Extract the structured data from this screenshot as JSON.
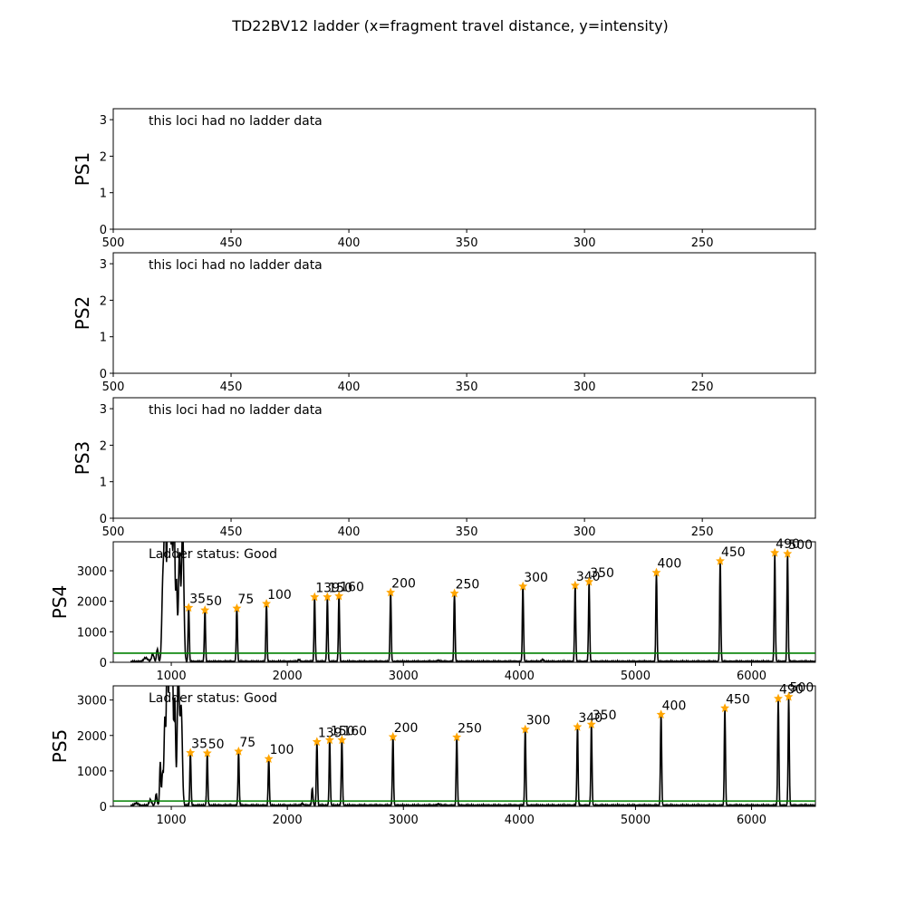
{
  "figure_title": "TD22BV12 ladder (x=fragment travel distance, y=intensity)",
  "chart_data": [
    {
      "type": "line",
      "ylabel": "PS1",
      "annotation": "this loci had no ladder data",
      "xlim": [
        500,
        202
      ],
      "x_ticks": [
        500,
        450,
        400,
        350,
        300,
        250
      ],
      "ylim": [
        0,
        3.3
      ],
      "y_ticks": [
        0,
        1,
        2,
        3
      ],
      "peaks": []
    },
    {
      "type": "line",
      "ylabel": "PS2",
      "annotation": "this loci had no ladder data",
      "xlim": [
        500,
        202
      ],
      "x_ticks": [
        500,
        450,
        400,
        350,
        300,
        250
      ],
      "ylim": [
        0,
        3.3
      ],
      "y_ticks": [
        0,
        1,
        2,
        3
      ],
      "peaks": []
    },
    {
      "type": "line",
      "ylabel": "PS3",
      "annotation": "this loci had no ladder data",
      "xlim": [
        500,
        202
      ],
      "x_ticks": [
        500,
        450,
        400,
        350,
        300,
        250
      ],
      "ylim": [
        0,
        3.3
      ],
      "y_ticks": [
        0,
        1,
        2,
        3
      ],
      "peaks": []
    },
    {
      "type": "line",
      "ylabel": "PS4",
      "annotation": "Ladder status: Good",
      "xlim": [
        500,
        6550
      ],
      "x_ticks": [
        1000,
        2000,
        3000,
        4000,
        5000,
        6000
      ],
      "ylim": [
        0,
        3950
      ],
      "y_ticks": [
        0,
        1000,
        2000,
        3000
      ],
      "threshold": 300,
      "colors": {
        "line": "#000000",
        "threshold": "#008000",
        "marker": "#ffa500"
      },
      "peaks": [
        {
          "x": 1150,
          "y": 1800,
          "label": "35"
        },
        {
          "x": 1290,
          "y": 1720,
          "label": "50"
        },
        {
          "x": 1565,
          "y": 1780,
          "label": "75"
        },
        {
          "x": 1820,
          "y": 1930,
          "label": "100"
        },
        {
          "x": 2235,
          "y": 2150,
          "label": "139"
        },
        {
          "x": 2345,
          "y": 2150,
          "label": "150"
        },
        {
          "x": 2445,
          "y": 2180,
          "label": "160"
        },
        {
          "x": 2890,
          "y": 2300,
          "label": "200"
        },
        {
          "x": 3440,
          "y": 2270,
          "label": "250"
        },
        {
          "x": 4030,
          "y": 2500,
          "label": "300"
        },
        {
          "x": 4480,
          "y": 2530,
          "label": "340"
        },
        {
          "x": 4600,
          "y": 2650,
          "label": "350"
        },
        {
          "x": 5180,
          "y": 2950,
          "label": "400"
        },
        {
          "x": 5730,
          "y": 3330,
          "label": "450"
        },
        {
          "x": 6200,
          "y": 3600,
          "label": "490"
        },
        {
          "x": 6310,
          "y": 3570,
          "label": "500"
        }
      ]
    },
    {
      "type": "line",
      "ylabel": "PS5",
      "annotation": "Ladder status: Good",
      "xlim": [
        500,
        6550
      ],
      "x_ticks": [
        1000,
        2000,
        3000,
        4000,
        5000,
        6000
      ],
      "ylim": [
        0,
        3400
      ],
      "y_ticks": [
        0,
        1000,
        2000,
        3000
      ],
      "threshold": 150,
      "colors": {
        "line": "#000000",
        "threshold": "#008000",
        "marker": "#ffa500"
      },
      "peaks": [
        {
          "x": 1165,
          "y": 1520,
          "label": "35"
        },
        {
          "x": 1310,
          "y": 1510,
          "label": "50"
        },
        {
          "x": 1580,
          "y": 1560,
          "label": "75"
        },
        {
          "x": 1840,
          "y": 1350,
          "label": "100"
        },
        {
          "x": 2255,
          "y": 1830,
          "label": "139"
        },
        {
          "x": 2365,
          "y": 1880,
          "label": "150"
        },
        {
          "x": 2470,
          "y": 1880,
          "label": "160"
        },
        {
          "x": 2910,
          "y": 1970,
          "label": "200"
        },
        {
          "x": 3460,
          "y": 1960,
          "label": "250"
        },
        {
          "x": 4050,
          "y": 2180,
          "label": "300"
        },
        {
          "x": 4500,
          "y": 2250,
          "label": "340"
        },
        {
          "x": 4620,
          "y": 2320,
          "label": "350"
        },
        {
          "x": 5220,
          "y": 2600,
          "label": "400"
        },
        {
          "x": 5770,
          "y": 2780,
          "label": "450"
        },
        {
          "x": 6230,
          "y": 3050,
          "label": "490"
        },
        {
          "x": 6320,
          "y": 3100,
          "label": "500"
        }
      ]
    }
  ]
}
